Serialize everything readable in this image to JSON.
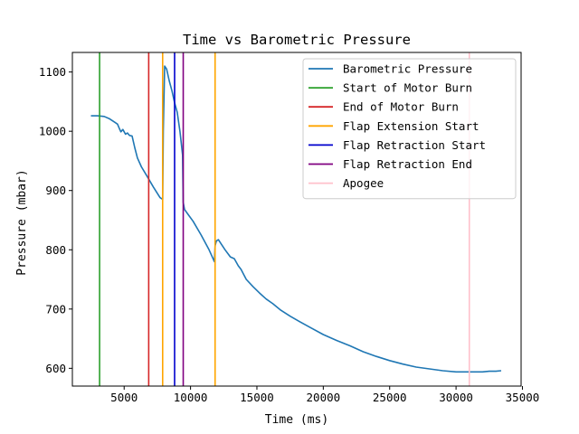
{
  "chart_data": {
    "type": "line",
    "title": "Time vs Barometric Pressure",
    "xlabel": "Time (ms)",
    "ylabel": "Pressure (mbar)",
    "xlim": [
      1100,
      34900
    ],
    "ylim": [
      570,
      1133
    ],
    "xticks": [
      5000,
      10000,
      15000,
      20000,
      25000,
      30000,
      35000
    ],
    "xtick_labels": [
      "5000",
      "10000",
      "15000",
      "20000",
      "25000",
      "30000",
      "35000"
    ],
    "yticks": [
      600,
      700,
      800,
      900,
      1000,
      1100
    ],
    "ytick_labels": [
      "600",
      "700",
      "800",
      "900",
      "1000",
      "1100"
    ],
    "grid": false,
    "legend_position": "top-right",
    "series": [
      {
        "name": "Barometric Pressure",
        "color": "#1f77b4",
        "x": [
          2500,
          3000,
          3500,
          3900,
          4300,
          4500,
          4650,
          4750,
          4900,
          5100,
          5250,
          5400,
          5600,
          5800,
          6000,
          6300,
          6700,
          7200,
          7700,
          7900,
          7950,
          8050,
          8200,
          8400,
          8600,
          8800,
          9000,
          9200,
          9400,
          9450,
          9550,
          9800,
          10200,
          10800,
          11400,
          11800,
          11850,
          11950,
          12100,
          12300,
          12600,
          13000,
          13300,
          13600,
          13800,
          14200,
          14700,
          15200,
          15700,
          16200,
          16800,
          17500,
          18200,
          19000,
          20000,
          21000,
          22000,
          23000,
          24000,
          25000,
          26000,
          27000,
          28000,
          29000,
          30000,
          31000,
          32000,
          32500,
          33000,
          33400
        ],
        "values": [
          1026,
          1026,
          1025,
          1021,
          1015,
          1012,
          1004,
          999,
          1003,
          995,
          997,
          993,
          992,
          972,
          955,
          940,
          925,
          906,
          888,
          885,
          1000,
          1110,
          1105,
          1085,
          1068,
          1048,
          1032,
          1000,
          960,
          880,
          868,
          860,
          848,
          825,
          800,
          780,
          807,
          815,
          817,
          810,
          800,
          788,
          785,
          773,
          767,
          750,
          738,
          727,
          717,
          709,
          698,
          688,
          679,
          669,
          657,
          647,
          638,
          628,
          620,
          613,
          607,
          602,
          599,
          596,
          594,
          594,
          594,
          595,
          595,
          596
        ]
      }
    ],
    "events": [
      {
        "name": "Start of Motor Burn",
        "x": 3150,
        "color": "#2ca02c"
      },
      {
        "name": "End of Motor Burn",
        "x": 6850,
        "color": "#d62728"
      },
      {
        "name": "Flap Extension Start",
        "x": 7900,
        "color": "#ffa500"
      },
      {
        "name": "Flap Retraction Start",
        "x": 8800,
        "color": "#0000cd"
      },
      {
        "name": "Flap Retraction End",
        "x": 9450,
        "color": "#800080"
      },
      {
        "name": "Apogee",
        "x": 31000,
        "color": "#ffc0cb"
      }
    ],
    "extra_lines": [
      {
        "x": 11850,
        "color": "#ffa500"
      }
    ]
  }
}
